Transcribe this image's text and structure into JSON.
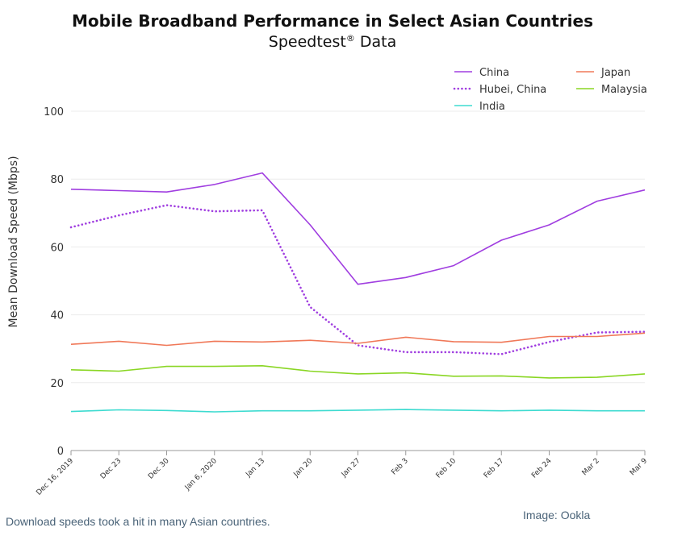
{
  "chart_data": {
    "type": "line",
    "title": "Mobile Broadband Performance in Select Asian Countries",
    "subtitle": "Speedtest",
    "subtitle_mark": "®",
    "subtitle_suffix": " Data",
    "xlabel": "",
    "ylabel": "Mean Download Speed (Mbps)",
    "ylim": [
      0,
      100
    ],
    "yticks": [
      0,
      20,
      40,
      60,
      80,
      100
    ],
    "grid": true,
    "legend_position": "top-right",
    "categories": [
      "Dec 16, 2019",
      "Dec 23",
      "Dec 30",
      "Jan 6, 2020",
      "Jan 13",
      "Jan 20",
      "Jan 27",
      "Feb 3",
      "Feb 10",
      "Feb 17",
      "Feb 24",
      "Mar 2",
      "Mar 9"
    ],
    "series": [
      {
        "name": "China",
        "color": "#a03ee0",
        "style": "solid",
        "values": [
          77,
          76.6,
          76.2,
          78.4,
          81.8,
          66.5,
          49,
          51,
          54.5,
          62,
          66.5,
          73.5,
          76.8
        ]
      },
      {
        "name": "Hubei, China",
        "color": "#a03ee0",
        "style": "dotted",
        "values": [
          65.8,
          69.3,
          72.3,
          70.5,
          70.8,
          42.3,
          31,
          29,
          29,
          28.4,
          32,
          34.8,
          35
        ]
      },
      {
        "name": "India",
        "color": "#3ddbd0",
        "style": "solid",
        "values": [
          11.5,
          12,
          11.8,
          11.4,
          11.7,
          11.7,
          11.9,
          12.1,
          11.9,
          11.7,
          11.9,
          11.7,
          11.7
        ]
      },
      {
        "name": "Japan",
        "color": "#f07858",
        "style": "solid",
        "values": [
          31.3,
          32.2,
          31,
          32.2,
          32,
          32.5,
          31.6,
          33.4,
          32.1,
          31.9,
          33.6,
          33.6,
          34.6
        ]
      },
      {
        "name": "Malaysia",
        "color": "#8ad624",
        "style": "solid",
        "values": [
          23.8,
          23.4,
          24.8,
          24.8,
          25,
          23.4,
          22.6,
          22.9,
          21.9,
          22,
          21.4,
          21.6,
          22.6
        ]
      }
    ]
  },
  "caption": "Download speeds took a hit in many Asian countries.",
  "credit": "Image: Ookla"
}
